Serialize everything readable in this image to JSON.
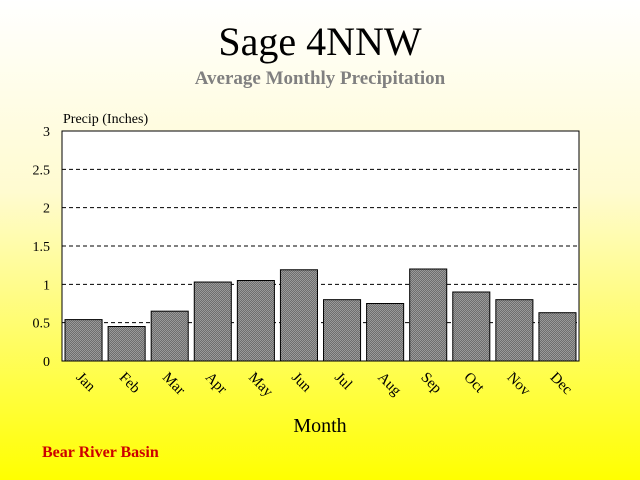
{
  "chart_data": {
    "type": "bar",
    "title": "Sage 4NNW",
    "subtitle": "Average Monthly Precipitation",
    "ylabel": "Precip (Inches)",
    "xlabel": "Month",
    "categories": [
      "Jan",
      "Feb",
      "Mar",
      "Apr",
      "May",
      "Jun",
      "Jul",
      "Aug",
      "Sep",
      "Oct",
      "Nov",
      "Dec"
    ],
    "values": [
      0.54,
      0.45,
      0.65,
      1.03,
      1.05,
      1.19,
      0.8,
      0.75,
      1.2,
      0.9,
      0.8,
      0.63
    ],
    "ylim": [
      0,
      3
    ],
    "yticks": [
      "0",
      "0.5",
      "1",
      "1.5",
      "2",
      "2.5",
      "3"
    ],
    "grid": true,
    "bar_color": "#808080"
  },
  "footer": "Bear River Basin"
}
